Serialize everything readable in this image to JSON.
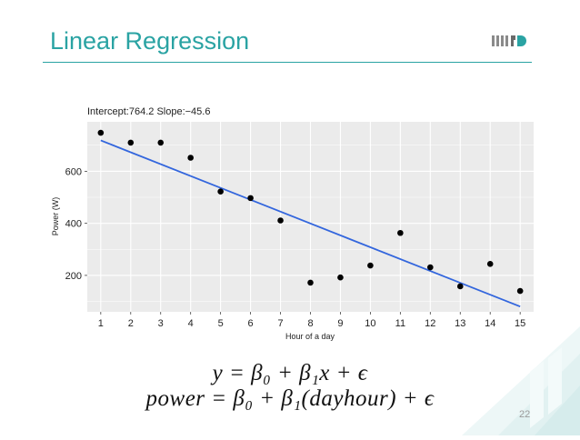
{
  "slide": {
    "title": "Linear Regression",
    "page_number": "22",
    "accent_color": "#2aa3a3",
    "logo_icon": "mirtd-logo-icon",
    "formula_1": "y = β₀ + β₁x + ϵ",
    "formula_2": "power = β₀ + β₁(dayhour) + ϵ"
  },
  "chart_data": {
    "type": "scatter",
    "title": "Intercept:764.2 Slope:−45.6",
    "xlabel": "Hour of a day",
    "ylabel": "Power (W)",
    "xlim": [
      0.55,
      15.45
    ],
    "ylim": [
      60,
      790
    ],
    "x_ticks": [
      1,
      2,
      3,
      4,
      5,
      6,
      7,
      8,
      9,
      10,
      11,
      12,
      13,
      14,
      15
    ],
    "y_ticks": [
      200,
      400,
      600
    ],
    "grid": true,
    "points": {
      "x": [
        1,
        2,
        3,
        4,
        5,
        6,
        7,
        8,
        9,
        10,
        11,
        12,
        13,
        14,
        15
      ],
      "y": [
        748,
        710,
        710,
        652,
        522,
        497,
        411,
        172,
        192,
        238,
        363,
        231,
        158,
        244,
        140
      ]
    },
    "fit": {
      "intercept": 764.2,
      "slope": -45.6,
      "x_start": 1,
      "x_end": 15
    },
    "colors": {
      "panel": "#ebebeb",
      "grid": "#ffffff",
      "points": "#000000",
      "fit_line": "#3366dd"
    }
  }
}
